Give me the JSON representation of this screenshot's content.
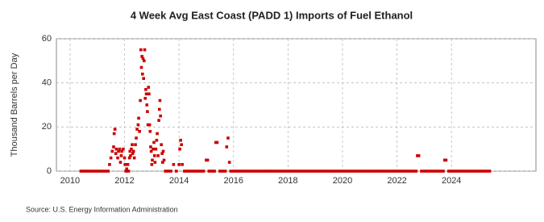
{
  "chart_data": {
    "type": "scatter",
    "title": "4 Week Avg East Coast (PADD 1) Imports of Fuel Ethanol",
    "y_label": "Thousand Barrels per Day",
    "source": "Source: U.S. Energy Information Administration",
    "color": "#cc0000",
    "grid": true,
    "xlim": [
      2009.5,
      2027.1
    ],
    "ylim": [
      0,
      60
    ],
    "xticks": [
      2010,
      2012,
      2014,
      2016,
      2018,
      2020,
      2022,
      2024
    ],
    "yticks": [
      0,
      20,
      40,
      60
    ],
    "x": [
      2010.4,
      2010.5,
      2010.6,
      2010.7,
      2010.8,
      2010.9,
      2011.0,
      2011.1,
      2011.2,
      2011.3,
      2011.4,
      2011.45,
      2011.5,
      2011.55,
      2011.6,
      2011.62,
      2011.65,
      2011.68,
      2011.7,
      2011.75,
      2011.78,
      2011.82,
      2011.85,
      2011.88,
      2011.9,
      2011.95,
      2012.0,
      2012.02,
      2012.05,
      2012.08,
      2012.12,
      2012.15,
      2012.18,
      2012.2,
      2012.22,
      2012.25,
      2012.28,
      2012.3,
      2012.33,
      2012.36,
      2012.4,
      2012.43,
      2012.46,
      2012.5,
      2012.52,
      2012.55,
      2012.58,
      2012.6,
      2012.62,
      2012.64,
      2012.66,
      2012.68,
      2012.7,
      2012.72,
      2012.74,
      2012.76,
      2012.78,
      2012.8,
      2012.82,
      2012.84,
      2012.86,
      2012.88,
      2012.9,
      2012.92,
      2012.94,
      2012.96,
      2012.98,
      2013.0,
      2013.02,
      2013.05,
      2013.08,
      2013.1,
      2013.12,
      2013.15,
      2013.18,
      2013.2,
      2013.23,
      2013.26,
      2013.28,
      2013.3,
      2013.32,
      2013.35,
      2013.38,
      2013.4,
      2013.42,
      2013.45,
      2013.5,
      2013.6,
      2013.7,
      2013.8,
      2013.9,
      2014.0,
      2014.03,
      2014.06,
      2014.09,
      2014.12,
      2014.2,
      2014.3,
      2014.4,
      2014.5,
      2014.6,
      2014.7,
      2014.8,
      2014.9,
      2015.0,
      2015.05,
      2015.1,
      2015.2,
      2015.3,
      2015.35,
      2015.4,
      2015.5,
      2015.6,
      2015.7,
      2015.75,
      2015.8,
      2015.85,
      2015.9,
      2016.0,
      2016.1,
      2016.2,
      2016.3,
      2016.4,
      2016.5,
      2016.6,
      2016.7,
      2016.8,
      2016.9,
      2017.0,
      2017.1,
      2017.2,
      2017.3,
      2017.4,
      2017.5,
      2017.6,
      2017.7,
      2017.8,
      2017.9,
      2018.0,
      2018.1,
      2018.2,
      2018.3,
      2018.4,
      2018.5,
      2018.6,
      2018.7,
      2018.8,
      2018.9,
      2019.0,
      2019.1,
      2019.2,
      2019.3,
      2019.4,
      2019.5,
      2019.6,
      2019.7,
      2019.8,
      2019.9,
      2020.0,
      2020.1,
      2020.2,
      2020.3,
      2020.4,
      2020.5,
      2020.6,
      2020.7,
      2020.8,
      2020.9,
      2021.0,
      2021.1,
      2021.2,
      2021.3,
      2021.4,
      2021.5,
      2021.6,
      2021.7,
      2021.8,
      2021.9,
      2022.0,
      2022.1,
      2022.2,
      2022.3,
      2022.4,
      2022.5,
      2022.6,
      2022.7,
      2022.75,
      2022.8,
      2022.9,
      2023.0,
      2023.1,
      2023.2,
      2023.3,
      2023.4,
      2023.5,
      2023.6,
      2023.7,
      2023.75,
      2023.8,
      2023.9,
      2024.0,
      2024.1,
      2024.2,
      2024.3,
      2024.4,
      2024.5,
      2024.6,
      2024.7,
      2024.8,
      2024.9,
      2025.0,
      2025.1,
      2025.2,
      2025.3,
      2025.4
    ],
    "values": [
      0,
      0,
      0,
      0,
      0,
      0,
      0,
      0,
      0,
      0,
      0,
      3,
      6,
      9,
      11,
      17,
      19,
      8,
      10,
      6,
      9,
      10,
      4,
      7,
      9,
      10,
      6,
      3,
      0,
      1,
      3,
      0,
      6,
      9,
      7,
      10,
      12,
      8,
      9,
      6,
      12,
      15,
      19,
      21,
      24,
      18,
      32,
      55,
      47,
      52,
      44,
      51,
      42,
      50,
      55,
      33,
      37,
      35,
      30,
      27,
      21,
      38,
      35,
      21,
      18,
      11,
      9,
      3,
      5,
      10,
      13,
      7,
      4,
      10,
      14,
      17,
      7,
      23,
      28,
      32,
      25,
      12,
      8,
      4,
      9,
      5,
      0,
      0,
      0,
      3,
      0,
      3,
      10,
      14,
      12,
      3,
      0,
      0,
      0,
      0,
      0,
      0,
      0,
      0,
      5,
      5,
      0,
      0,
      0,
      13,
      13,
      0,
      0,
      0,
      11,
      15,
      4,
      0,
      0,
      0,
      0,
      0,
      0,
      0,
      0,
      0,
      0,
      0,
      0,
      0,
      0,
      0,
      0,
      0,
      0,
      0,
      0,
      0,
      0,
      0,
      0,
      0,
      0,
      0,
      0,
      0,
      0,
      0,
      0,
      0,
      0,
      0,
      0,
      0,
      0,
      0,
      0,
      0,
      0,
      0,
      0,
      0,
      0,
      0,
      0,
      0,
      0,
      0,
      0,
      0,
      0,
      0,
      0,
      0,
      0,
      0,
      0,
      0,
      0,
      0,
      0,
      0,
      0,
      0,
      0,
      0,
      7,
      7,
      0,
      0,
      0,
      0,
      0,
      0,
      0,
      0,
      0,
      5,
      5,
      0,
      0,
      0,
      0,
      0,
      0,
      0,
      0,
      0,
      0,
      0,
      0,
      0,
      0,
      0,
      0
    ]
  }
}
